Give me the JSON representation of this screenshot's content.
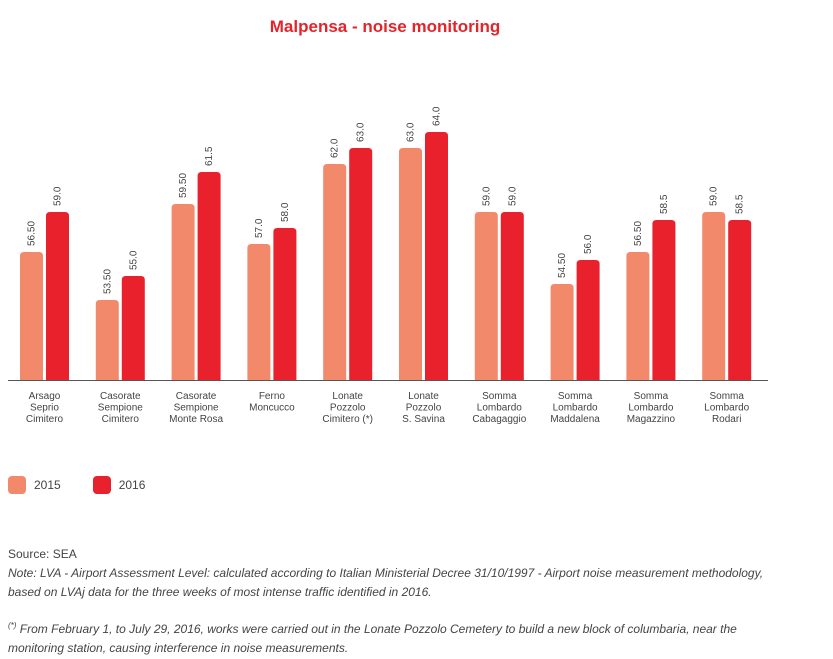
{
  "header": {
    "title": "Malpensa - noise monitoring"
  },
  "colors": {
    "accent": "#e3242b",
    "s2015": "#f3896b",
    "s2016": "#e8212c"
  },
  "chart_data": {
    "type": "bar",
    "title": "Malpensa - noise monitoring",
    "categories": [
      [
        "Arsago",
        "Seprio",
        "Cimitero"
      ],
      [
        "Casorate",
        "Sempione",
        "Cimitero"
      ],
      [
        "Casorate",
        "Sempione",
        "Monte Rosa"
      ],
      [
        "Ferno",
        "Moncucco"
      ],
      [
        "Lonate",
        "Pozzolo",
        "Cimitero (*)"
      ],
      [
        "Lonate",
        "Pozzolo",
        "S. Savina"
      ],
      [
        "Somma",
        "Lombardo",
        "Cabagaggio"
      ],
      [
        "Somma",
        "Lombardo",
        "Maddalena"
      ],
      [
        "Somma",
        "Lombardo",
        "Magazzino"
      ],
      [
        "Somma",
        "Lombardo",
        "Rodari"
      ]
    ],
    "series": [
      {
        "name": "2015",
        "values": [
          56.5,
          53.5,
          59.5,
          57.0,
          62.0,
          63.0,
          59.0,
          54.5,
          56.5,
          59.0
        ],
        "labels": [
          "56.50",
          "53.50",
          "59.50",
          "57.0",
          "62.0",
          "63.0",
          "59.0",
          "54.50",
          "56.50",
          "59.0"
        ]
      },
      {
        "name": "2016",
        "values": [
          59.0,
          55.0,
          61.5,
          58.0,
          63.0,
          64.0,
          59.0,
          56.0,
          58.5,
          58.5
        ],
        "labels": [
          "59.0",
          "55.0",
          "61.5",
          "58.0",
          "63.0",
          "64.0",
          "59.0",
          "56.0",
          "58.5",
          "58.5"
        ]
      }
    ],
    "xlabel": "",
    "ylabel": "",
    "ylim": [
      48.5,
      66
    ],
    "grid": false,
    "legend": "bottom-left"
  },
  "notes": {
    "source": "Source: SEA",
    "note": "Note: LVA - Airport Assessment Level: calculated according to Italian Ministerial Decree 31/10/1997 - Airport noise measurement methodology, based on LVAj data for the three weeks of most intense traffic identified in 2016.",
    "footnote_mark": "(*)",
    "footnote": " From February 1, to July 29, 2016, works were carried out in the Lonate Pozzolo Cemetery to build a new block of columbaria, near the monitoring station, causing interference in noise measurements."
  }
}
